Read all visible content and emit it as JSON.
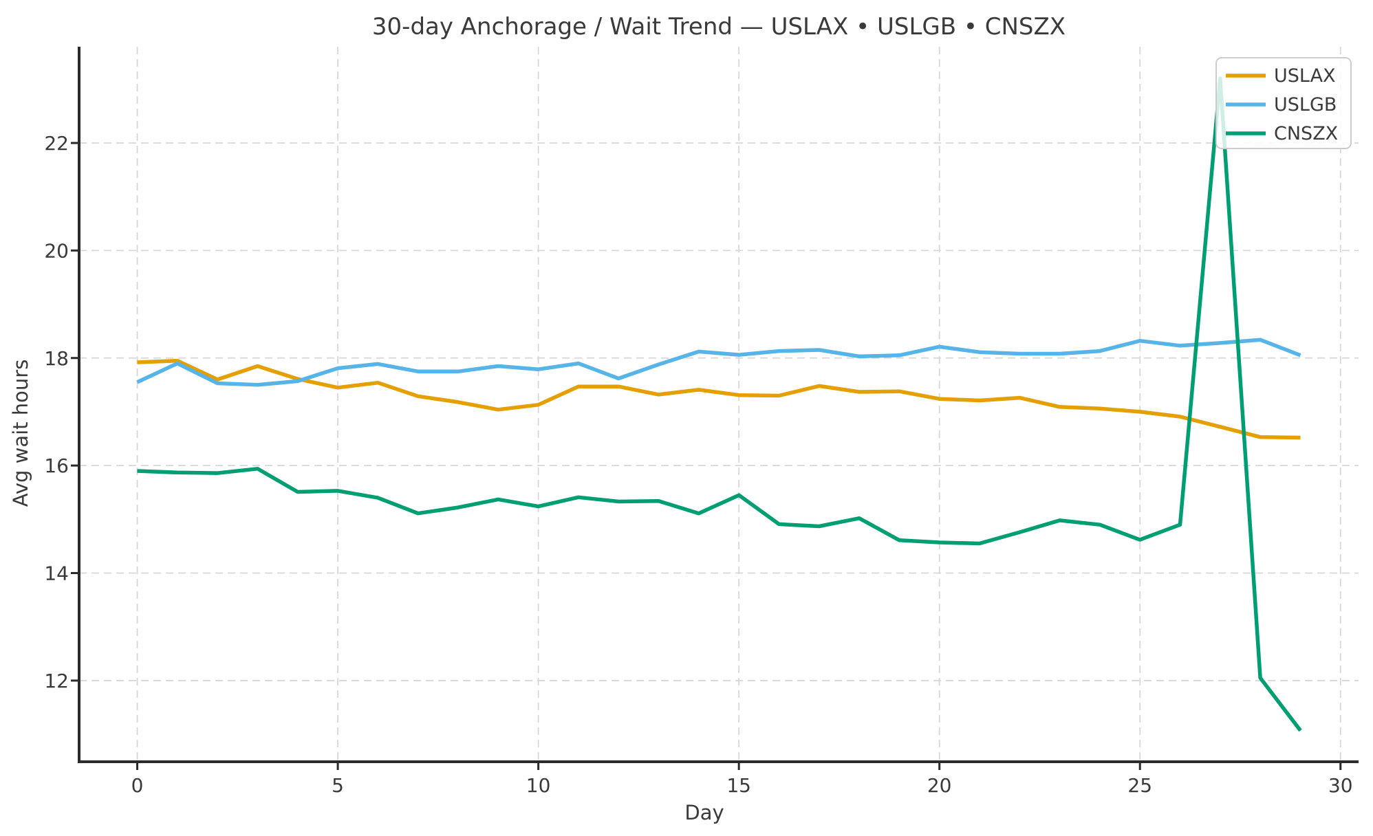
{
  "chart_data": {
    "type": "line",
    "title": "30-day Anchorage / Wait Trend — USLAX • USLGB • CNSZX",
    "xlabel": "Day",
    "ylabel": "Avg wait hours",
    "x": [
      0,
      1,
      2,
      3,
      4,
      5,
      6,
      7,
      8,
      9,
      10,
      11,
      12,
      13,
      14,
      15,
      16,
      17,
      18,
      19,
      20,
      21,
      22,
      23,
      24,
      25,
      26,
      27,
      28,
      29
    ],
    "series": [
      {
        "name": "USLAX",
        "color": "#E69F00",
        "values": [
          17.92,
          17.95,
          17.6,
          17.85,
          17.61,
          17.45,
          17.54,
          17.29,
          17.18,
          17.04,
          17.13,
          17.47,
          17.47,
          17.32,
          17.41,
          17.31,
          17.3,
          17.48,
          17.37,
          17.38,
          17.24,
          17.21,
          17.26,
          17.09,
          17.06,
          17.0,
          16.91,
          16.72,
          16.53,
          16.52
        ]
      },
      {
        "name": "USLGB",
        "color": "#56B4E9",
        "values": [
          17.55,
          17.9,
          17.53,
          17.5,
          17.57,
          17.81,
          17.89,
          17.75,
          17.75,
          17.85,
          17.79,
          17.9,
          17.62,
          17.88,
          18.12,
          18.06,
          18.13,
          18.15,
          18.03,
          18.05,
          18.21,
          18.11,
          18.08,
          18.08,
          18.13,
          18.32,
          18.23,
          18.28,
          18.34,
          18.05
        ]
      },
      {
        "name": "CNSZX",
        "color": "#009E73",
        "values": [
          15.9,
          15.87,
          15.86,
          15.94,
          15.51,
          15.53,
          15.4,
          15.11,
          15.22,
          15.37,
          15.24,
          15.41,
          15.33,
          15.34,
          15.11,
          15.45,
          14.91,
          14.87,
          15.02,
          14.61,
          14.57,
          14.55,
          14.76,
          14.98,
          14.9,
          14.62,
          14.9,
          23.2,
          12.05,
          11.07
        ]
      }
    ],
    "xlim": [
      -1.45,
      30.45
    ],
    "ylim": [
      10.49,
      23.79
    ],
    "xticks": [
      0,
      5,
      10,
      15,
      20,
      25,
      30
    ],
    "yticks": [
      12,
      14,
      16,
      18,
      20,
      22
    ],
    "grid": true,
    "legend": {
      "position": "upper right",
      "labels": [
        "USLAX",
        "USLGB",
        "CNSZX"
      ]
    }
  },
  "styles": {
    "background": "#ffffff",
    "text_color": "#3a3a3a",
    "grid_color": "#d7d7d7",
    "spine_color": "#2b2b2b",
    "legend_border": "#cccccc"
  }
}
